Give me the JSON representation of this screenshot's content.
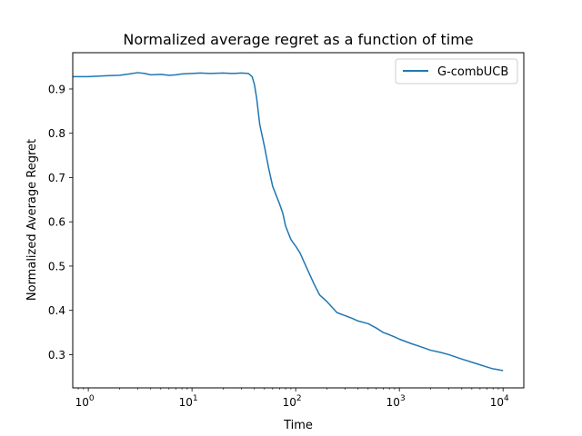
{
  "chart_data": {
    "type": "line",
    "title": "Normalized average regret as a function of time",
    "xlabel": "Time",
    "ylabel": "Normalized Average Regret",
    "xscale": "log",
    "xlim_log10": [
      -0.15,
      4.2
    ],
    "ylim": [
      0.225,
      0.982
    ],
    "x_ticks": [
      {
        "value": 1,
        "base": "10",
        "exp": "0"
      },
      {
        "value": 10,
        "base": "10",
        "exp": "1"
      },
      {
        "value": 100,
        "base": "10",
        "exp": "2"
      },
      {
        "value": 1000,
        "base": "10",
        "exp": "3"
      },
      {
        "value": 10000,
        "base": "10",
        "exp": "4"
      }
    ],
    "y_ticks": [
      {
        "value": 0.3,
        "label": "0.3"
      },
      {
        "value": 0.4,
        "label": "0.4"
      },
      {
        "value": 0.5,
        "label": "0.5"
      },
      {
        "value": 0.6,
        "label": "0.6"
      },
      {
        "value": 0.7,
        "label": "0.7"
      },
      {
        "value": 0.8,
        "label": "0.8"
      },
      {
        "value": 0.9,
        "label": "0.9"
      }
    ],
    "legend": {
      "position": "top-right",
      "entries": [
        "G-combUCB"
      ]
    },
    "grid": false,
    "series": [
      {
        "name": "G-combUCB",
        "color": "#1f77b4",
        "points": [
          [
            0.7,
            0.928
          ],
          [
            1,
            0.928
          ],
          [
            1.5,
            0.93
          ],
          [
            2,
            0.931
          ],
          [
            2.5,
            0.934
          ],
          [
            3,
            0.937
          ],
          [
            3.5,
            0.935
          ],
          [
            4,
            0.932
          ],
          [
            5,
            0.933
          ],
          [
            6,
            0.931
          ],
          [
            7,
            0.932
          ],
          [
            8,
            0.934
          ],
          [
            10,
            0.935
          ],
          [
            12,
            0.936
          ],
          [
            15,
            0.935
          ],
          [
            20,
            0.936
          ],
          [
            25,
            0.935
          ],
          [
            30,
            0.936
          ],
          [
            35,
            0.935
          ],
          [
            38,
            0.928
          ],
          [
            40,
            0.91
          ],
          [
            42,
            0.88
          ],
          [
            45,
            0.82
          ],
          [
            50,
            0.77
          ],
          [
            55,
            0.72
          ],
          [
            60,
            0.68
          ],
          [
            70,
            0.64
          ],
          [
            75,
            0.62
          ],
          [
            80,
            0.59
          ],
          [
            90,
            0.56
          ],
          [
            100,
            0.545
          ],
          [
            110,
            0.53
          ],
          [
            120,
            0.51
          ],
          [
            150,
            0.46
          ],
          [
            170,
            0.435
          ],
          [
            200,
            0.42
          ],
          [
            250,
            0.395
          ],
          [
            300,
            0.388
          ],
          [
            350,
            0.382
          ],
          [
            400,
            0.376
          ],
          [
            500,
            0.37
          ],
          [
            600,
            0.36
          ],
          [
            700,
            0.35
          ],
          [
            800,
            0.345
          ],
          [
            900,
            0.34
          ],
          [
            1000,
            0.335
          ],
          [
            1300,
            0.325
          ],
          [
            1600,
            0.318
          ],
          [
            2000,
            0.31
          ],
          [
            2500,
            0.305
          ],
          [
            3000,
            0.3
          ],
          [
            4000,
            0.29
          ],
          [
            5000,
            0.283
          ],
          [
            6000,
            0.277
          ],
          [
            7000,
            0.272
          ],
          [
            8000,
            0.268
          ],
          [
            9000,
            0.266
          ],
          [
            10000,
            0.264
          ]
        ]
      }
    ]
  }
}
